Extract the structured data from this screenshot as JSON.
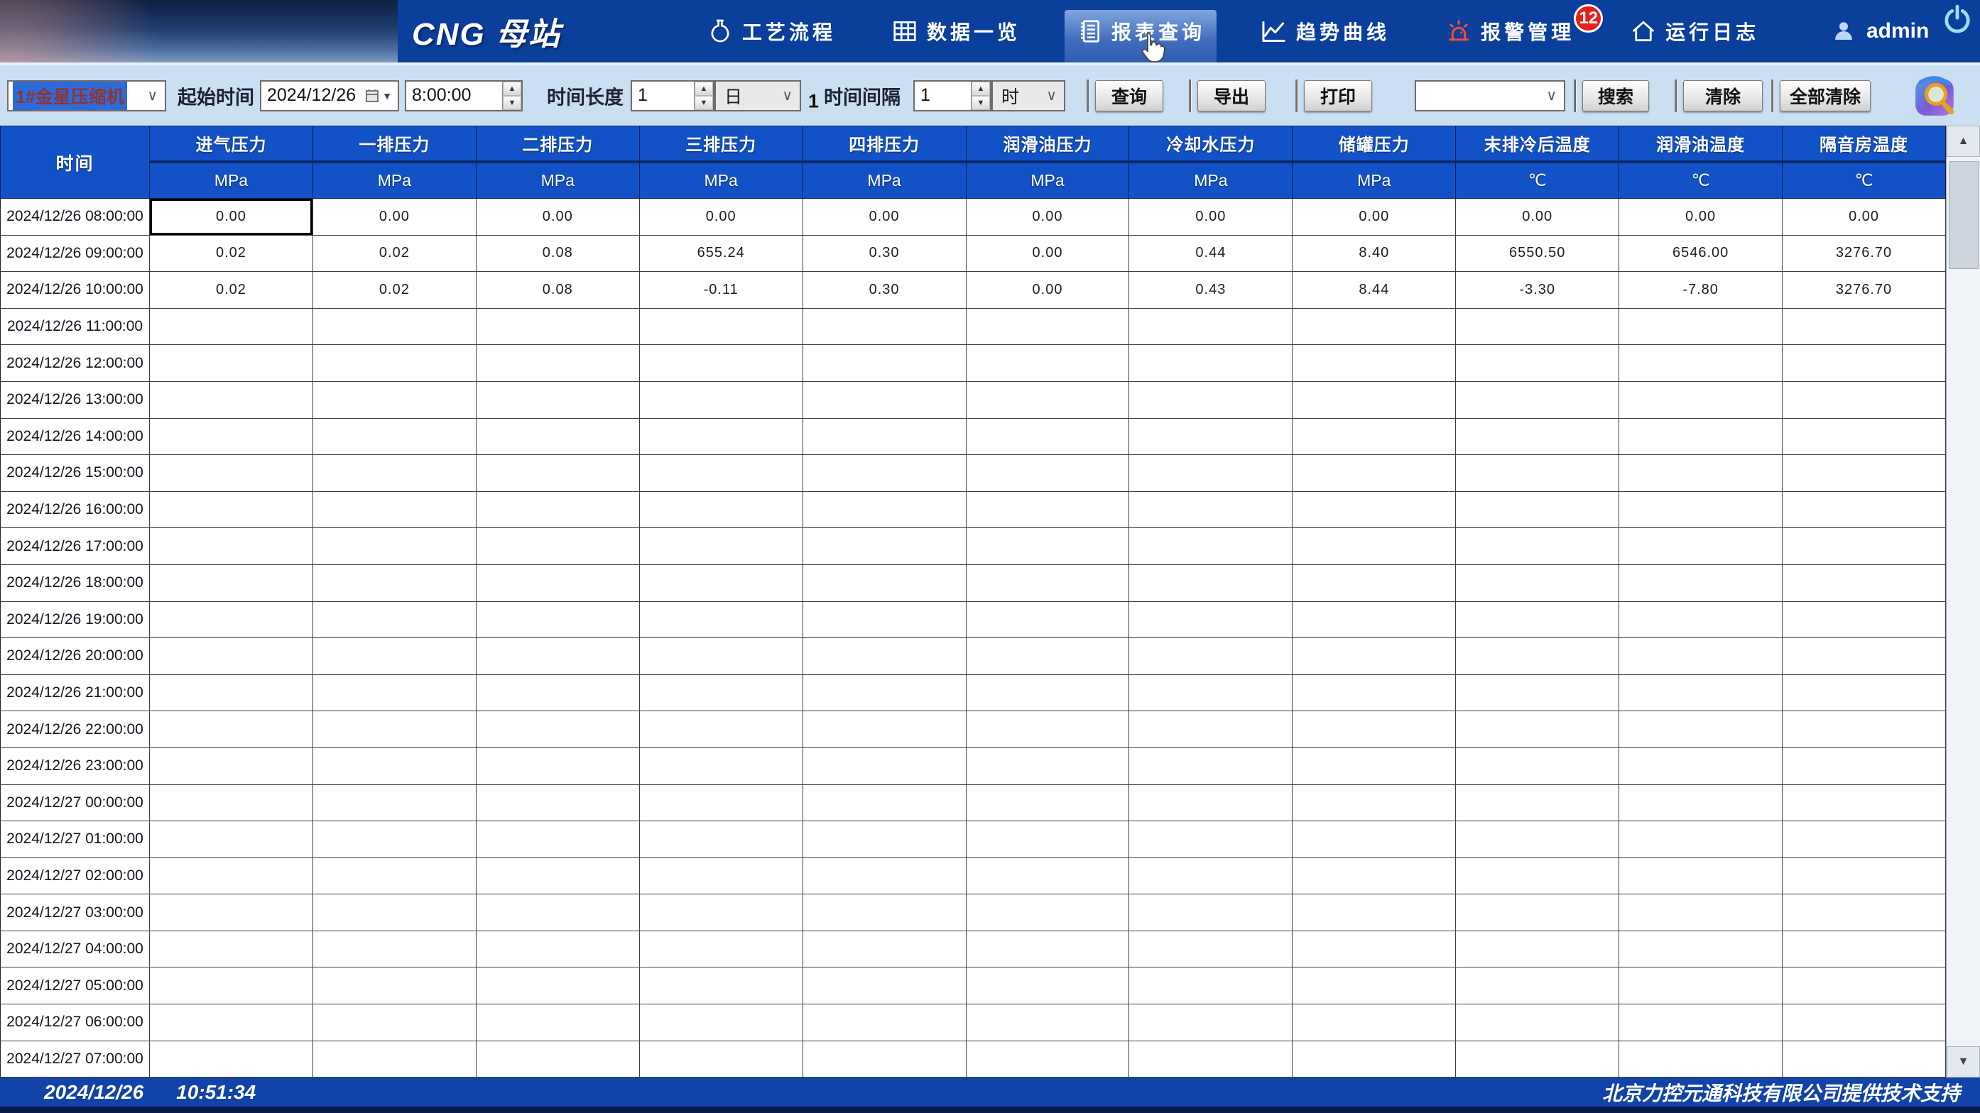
{
  "colors": {
    "header_bar": "#0a3f9c",
    "table_header": "#1252c6",
    "status_bar": "#1243a8",
    "badge_red": "#e62117",
    "alarm_red": "#e8321e",
    "toolbar_bg": "#cbdff2"
  },
  "header": {
    "title": "CNG 母站",
    "nav": [
      {
        "label": "工艺流程",
        "icon": "flask-icon",
        "selected": false
      },
      {
        "label": "数据一览",
        "icon": "grid-icon",
        "selected": false
      },
      {
        "label": "报表查询",
        "icon": "report-icon",
        "selected": true
      },
      {
        "label": "趋势曲线",
        "icon": "trend-icon",
        "selected": false
      },
      {
        "label": "报警管理",
        "icon": "alarm-icon",
        "selected": false,
        "badge": "12"
      },
      {
        "label": "运行日志",
        "icon": "home-icon",
        "selected": false
      }
    ],
    "user": {
      "name": "admin",
      "icon": "user-icon"
    },
    "power": {
      "icon": "power-icon"
    }
  },
  "toolbar": {
    "device_select": {
      "value": "1#金星压缩机"
    },
    "start_time_label": "起始时间",
    "date_value": "2024/12/26",
    "time_value": "8:00:00",
    "duration_label": "时间长度",
    "duration_value": "1",
    "duration_unit": "日",
    "stray_text": "1",
    "interval_label": "时间间隔",
    "interval_value": "1",
    "interval_unit": "时",
    "search_select_value": "",
    "buttons": {
      "query": "查询",
      "export": "导出",
      "print": "打印",
      "search": "搜索",
      "clear": "清除",
      "clear_all": "全部清除"
    },
    "magnifier_icon": "magnifier-icon"
  },
  "table": {
    "time_header": "时间",
    "selected_cell": {
      "row": 0,
      "col": 0
    },
    "columns": [
      {
        "name": "进气压力",
        "unit": "MPa"
      },
      {
        "name": "一排压力",
        "unit": "MPa"
      },
      {
        "name": "二排压力",
        "unit": "MPa"
      },
      {
        "name": "三排压力",
        "unit": "MPa"
      },
      {
        "name": "四排压力",
        "unit": "MPa"
      },
      {
        "name": "润滑油压力",
        "unit": "MPa"
      },
      {
        "name": "冷却水压力",
        "unit": "MPa"
      },
      {
        "name": "储罐压力",
        "unit": "MPa"
      },
      {
        "name": "末排冷后温度",
        "unit": "℃"
      },
      {
        "name": "润滑油温度",
        "unit": "℃"
      },
      {
        "name": "隔音房温度",
        "unit": "℃"
      }
    ],
    "rows": [
      {
        "time": "2024/12/26 08:00:00",
        "values": [
          "0.00",
          "0.00",
          "0.00",
          "0.00",
          "0.00",
          "0.00",
          "0.00",
          "0.00",
          "0.00",
          "0.00",
          "0.00"
        ]
      },
      {
        "time": "2024/12/26 09:00:00",
        "values": [
          "0.02",
          "0.02",
          "0.08",
          "655.24",
          "0.30",
          "0.00",
          "0.44",
          "8.40",
          "6550.50",
          "6546.00",
          "3276.70"
        ]
      },
      {
        "time": "2024/12/26 10:00:00",
        "values": [
          "0.02",
          "0.02",
          "0.08",
          "-0.11",
          "0.30",
          "0.00",
          "0.43",
          "8.44",
          "-3.30",
          "-7.80",
          "3276.70"
        ]
      },
      {
        "time": "2024/12/26 11:00:00",
        "values": []
      },
      {
        "time": "2024/12/26 12:00:00",
        "values": []
      },
      {
        "time": "2024/12/26 13:00:00",
        "values": []
      },
      {
        "time": "2024/12/26 14:00:00",
        "values": []
      },
      {
        "time": "2024/12/26 15:00:00",
        "values": []
      },
      {
        "time": "2024/12/26 16:00:00",
        "values": []
      },
      {
        "time": "2024/12/26 17:00:00",
        "values": []
      },
      {
        "time": "2024/12/26 18:00:00",
        "values": []
      },
      {
        "time": "2024/12/26 19:00:00",
        "values": []
      },
      {
        "time": "2024/12/26 20:00:00",
        "values": []
      },
      {
        "time": "2024/12/26 21:00:00",
        "values": []
      },
      {
        "time": "2024/12/26 22:00:00",
        "values": []
      },
      {
        "time": "2024/12/26 23:00:00",
        "values": []
      },
      {
        "time": "2024/12/27 00:00:00",
        "values": []
      },
      {
        "time": "2024/12/27 01:00:00",
        "values": []
      },
      {
        "time": "2024/12/27 02:00:00",
        "values": []
      },
      {
        "time": "2024/12/27 03:00:00",
        "values": []
      },
      {
        "time": "2024/12/27 04:00:00",
        "values": []
      },
      {
        "time": "2024/12/27 05:00:00",
        "values": []
      },
      {
        "time": "2024/12/27 06:00:00",
        "values": []
      },
      {
        "time": "2024/12/27 07:00:00",
        "values": []
      }
    ]
  },
  "statusbar": {
    "date": "2024/12/26",
    "time": "10:51:34",
    "support": "北京力控元通科技有限公司提供技术支持"
  }
}
